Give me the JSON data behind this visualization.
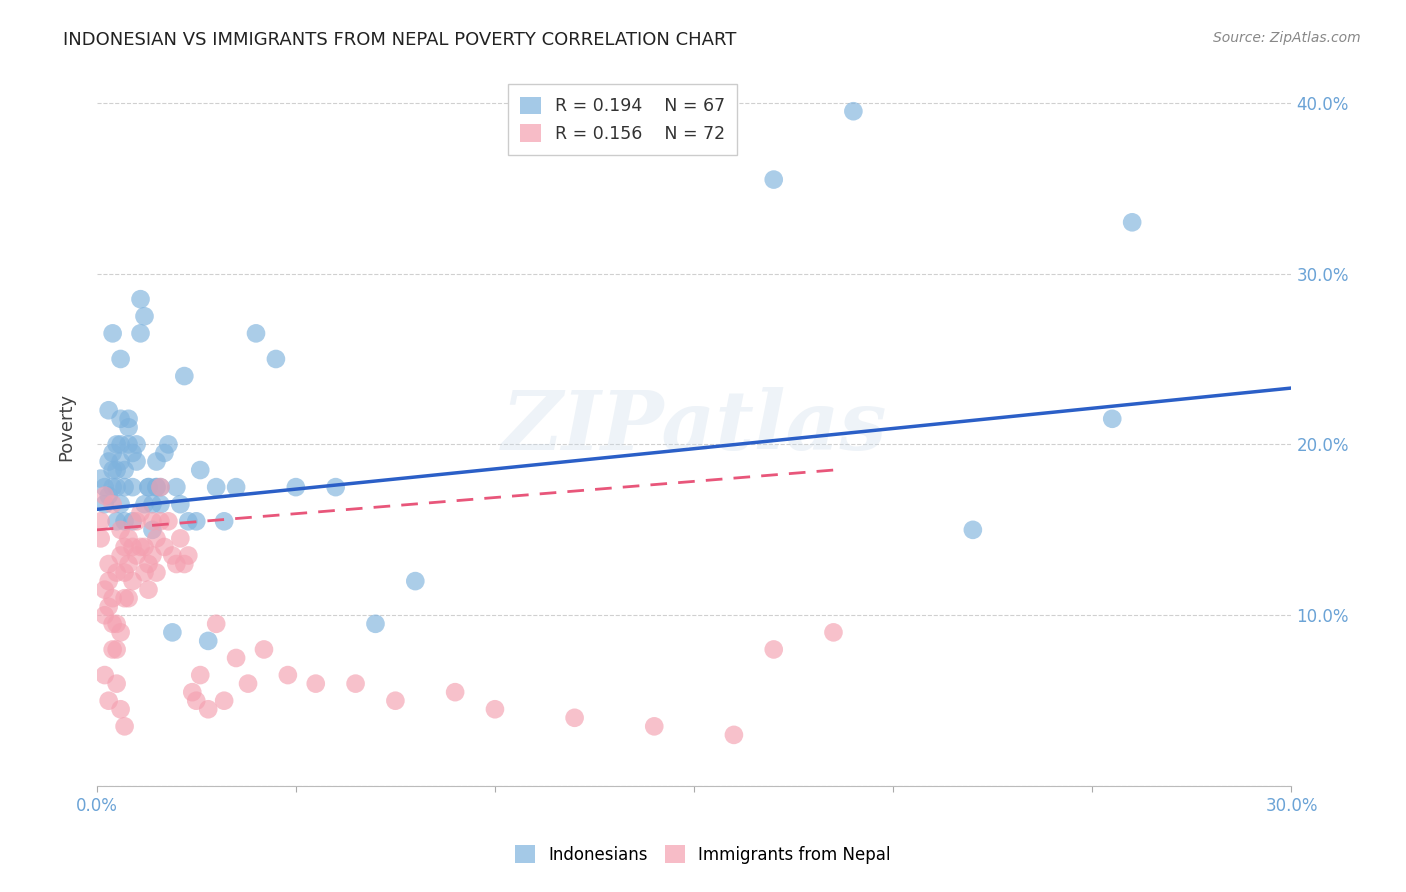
{
  "title": "INDONESIAN VS IMMIGRANTS FROM NEPAL POVERTY CORRELATION CHART",
  "source": "Source: ZipAtlas.com",
  "ylabel": "Poverty",
  "xlim": [
    0.0,
    0.3
  ],
  "ylim": [
    0.0,
    0.42
  ],
  "legend_R1": "R = 0.194",
  "legend_N1": "N = 67",
  "legend_R2": "R = 0.156",
  "legend_N2": "N = 72",
  "color_blue": "#7EB2DD",
  "color_pink": "#F4A0B0",
  "color_blue_line": "#2B5FC7",
  "color_pink_line": "#E8567A",
  "color_axis_blue": "#6BA3D6",
  "color_grid": "#D0D0D0",
  "watermark_text": "ZIPatlas",
  "indonesians_x": [
    0.001,
    0.002,
    0.002,
    0.003,
    0.003,
    0.004,
    0.004,
    0.004,
    0.005,
    0.005,
    0.005,
    0.005,
    0.006,
    0.006,
    0.006,
    0.006,
    0.007,
    0.007,
    0.008,
    0.008,
    0.008,
    0.009,
    0.009,
    0.01,
    0.01,
    0.011,
    0.011,
    0.012,
    0.013,
    0.013,
    0.014,
    0.014,
    0.015,
    0.015,
    0.016,
    0.016,
    0.017,
    0.018,
    0.019,
    0.02,
    0.021,
    0.022,
    0.023,
    0.025,
    0.026,
    0.028,
    0.03,
    0.032,
    0.035,
    0.04,
    0.045,
    0.05,
    0.06,
    0.07,
    0.08,
    0.17,
    0.19,
    0.22,
    0.255,
    0.26,
    0.003,
    0.004,
    0.006,
    0.007,
    0.009,
    0.012,
    0.015
  ],
  "indonesians_y": [
    0.18,
    0.175,
    0.165,
    0.17,
    0.19,
    0.185,
    0.175,
    0.195,
    0.2,
    0.185,
    0.175,
    0.155,
    0.19,
    0.2,
    0.215,
    0.165,
    0.185,
    0.175,
    0.2,
    0.21,
    0.215,
    0.195,
    0.175,
    0.19,
    0.2,
    0.265,
    0.285,
    0.275,
    0.175,
    0.175,
    0.165,
    0.15,
    0.19,
    0.175,
    0.175,
    0.165,
    0.195,
    0.2,
    0.09,
    0.175,
    0.165,
    0.24,
    0.155,
    0.155,
    0.185,
    0.085,
    0.175,
    0.155,
    0.175,
    0.265,
    0.25,
    0.175,
    0.175,
    0.095,
    0.12,
    0.355,
    0.395,
    0.15,
    0.215,
    0.33,
    0.22,
    0.265,
    0.25,
    0.155,
    0.155,
    0.165,
    0.175
  ],
  "nepal_x": [
    0.001,
    0.001,
    0.002,
    0.002,
    0.002,
    0.003,
    0.003,
    0.003,
    0.004,
    0.004,
    0.004,
    0.005,
    0.005,
    0.005,
    0.006,
    0.006,
    0.006,
    0.007,
    0.007,
    0.007,
    0.008,
    0.008,
    0.008,
    0.009,
    0.009,
    0.01,
    0.01,
    0.011,
    0.011,
    0.012,
    0.012,
    0.013,
    0.013,
    0.014,
    0.014,
    0.015,
    0.015,
    0.016,
    0.016,
    0.017,
    0.018,
    0.019,
    0.02,
    0.021,
    0.022,
    0.023,
    0.024,
    0.025,
    0.026,
    0.028,
    0.03,
    0.032,
    0.035,
    0.038,
    0.042,
    0.048,
    0.055,
    0.065,
    0.075,
    0.09,
    0.1,
    0.12,
    0.14,
    0.16,
    0.17,
    0.185,
    0.002,
    0.003,
    0.004,
    0.005,
    0.006,
    0.007
  ],
  "nepal_y": [
    0.155,
    0.145,
    0.17,
    0.115,
    0.1,
    0.13,
    0.12,
    0.105,
    0.165,
    0.11,
    0.095,
    0.125,
    0.095,
    0.08,
    0.15,
    0.135,
    0.09,
    0.14,
    0.125,
    0.11,
    0.145,
    0.13,
    0.11,
    0.14,
    0.12,
    0.155,
    0.135,
    0.16,
    0.14,
    0.14,
    0.125,
    0.13,
    0.115,
    0.155,
    0.135,
    0.145,
    0.125,
    0.175,
    0.155,
    0.14,
    0.155,
    0.135,
    0.13,
    0.145,
    0.13,
    0.135,
    0.055,
    0.05,
    0.065,
    0.045,
    0.095,
    0.05,
    0.075,
    0.06,
    0.08,
    0.065,
    0.06,
    0.06,
    0.05,
    0.055,
    0.045,
    0.04,
    0.035,
    0.03,
    0.08,
    0.09,
    0.065,
    0.05,
    0.08,
    0.06,
    0.045,
    0.035
  ],
  "trendline_blue_x0": 0.0,
  "trendline_blue_y0": 0.162,
  "trendline_blue_x1": 0.3,
  "trendline_blue_y1": 0.233,
  "trendline_pink_x0": 0.0,
  "trendline_pink_y0": 0.15,
  "trendline_pink_x1": 0.185,
  "trendline_pink_y1": 0.185
}
